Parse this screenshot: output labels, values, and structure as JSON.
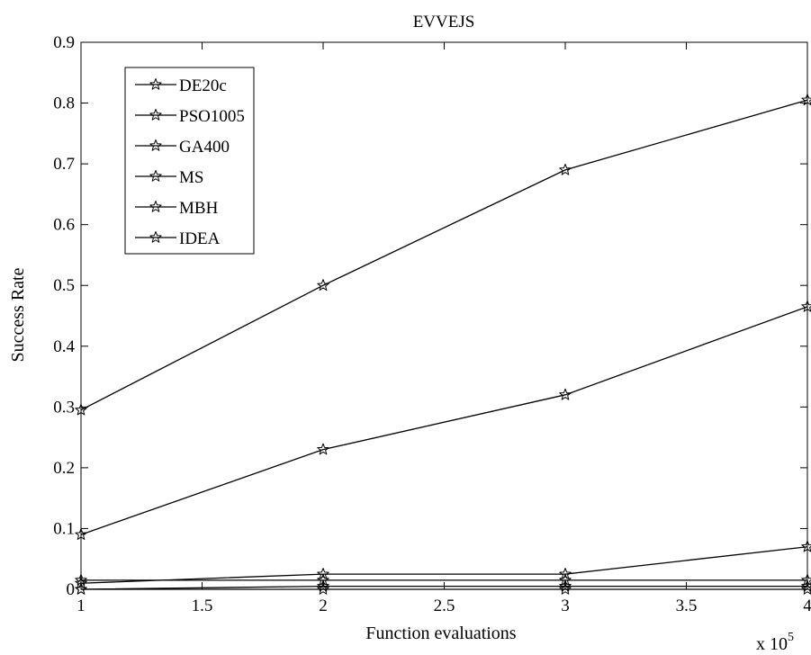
{
  "chart_data": {
    "type": "line",
    "title": "EVVEJS",
    "xlabel": "Function evaluations",
    "ylabel": "Success Rate",
    "x_exponent_label": "x 10",
    "x_exponent_power": "5",
    "x": [
      1,
      2,
      3,
      4
    ],
    "xlim": [
      1,
      4
    ],
    "ylim": [
      0,
      0.9
    ],
    "xticks": [
      "1",
      "1.5",
      "2",
      "2.5",
      "3",
      "3.5",
      "4"
    ],
    "yticks": [
      "0",
      "0.1",
      "0.2",
      "0.3",
      "0.4",
      "0.5",
      "0.6",
      "0.7",
      "0.8",
      "0.9"
    ],
    "grid": false,
    "legend_position": "top-left",
    "marker": "pentagram",
    "color": "#000000",
    "series": [
      {
        "name": "DE20c",
        "values": [
          0.295,
          0.5,
          0.69,
          0.805
        ]
      },
      {
        "name": "PSO1005",
        "values": [
          0.09,
          0.23,
          0.32,
          0.465
        ]
      },
      {
        "name": "GA400",
        "values": [
          0.01,
          0.025,
          0.025,
          0.07
        ]
      },
      {
        "name": "MS",
        "values": [
          0.015,
          0.015,
          0.015,
          0.015
        ]
      },
      {
        "name": "MBH",
        "values": [
          0.0,
          0.005,
          0.005,
          0.005
        ]
      },
      {
        "name": "IDEA",
        "values": [
          0.0,
          0.0,
          0.0,
          0.0
        ]
      }
    ]
  }
}
